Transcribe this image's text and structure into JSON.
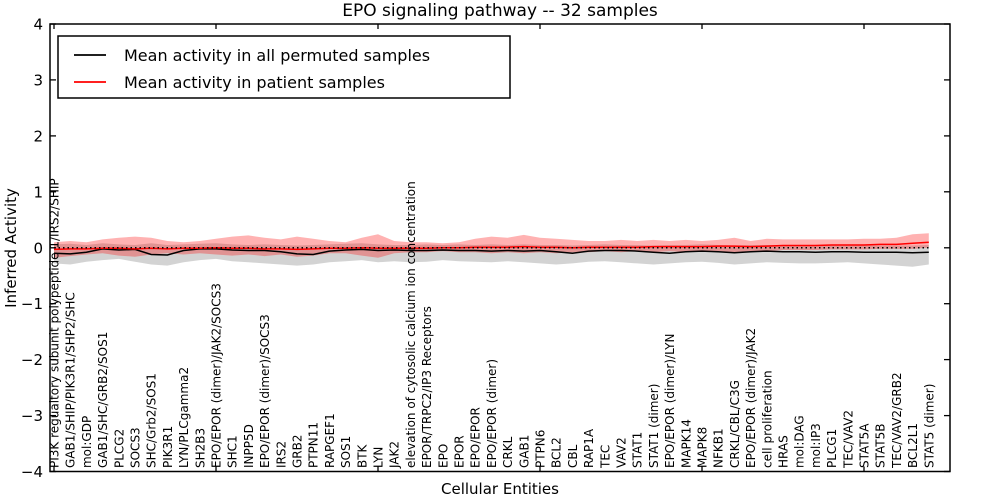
{
  "chart_data": {
    "type": "line",
    "title": "EPO signaling pathway -- 32 samples",
    "xlabel": "Cellular Entities",
    "ylabel": "Inferred Activity",
    "ylim": [
      -4,
      4
    ],
    "yticks": [
      -4,
      -3,
      -2,
      -1,
      0,
      1,
      2,
      3,
      4
    ],
    "xtick_interval": 10,
    "grid": false,
    "legend_position": "upper left",
    "zero_line": {
      "value": 0,
      "style": "dotted",
      "color": "#000000"
    },
    "legend": {
      "entries": [
        {
          "label": "Mean activity in all permuted samples",
          "color": "#000000"
        },
        {
          "label": "Mean activity in patient samples",
          "color": "#ff0000"
        }
      ]
    },
    "categories": [
      "PI3K regualtory subunit polypeptide 1/IRS2/SHIP",
      "GAB1/SHIP/PIK3R1/SHP2/SHC",
      "mol:GDP",
      "GAB1/SHC/GRB2/SOS1",
      "PLCG2",
      "SOCS3",
      "SHC/Grb2/SOS1",
      "PIK3R1",
      "LYN/PLCgamma2",
      "SH2B3",
      "EPO/EPOR (dimer)/JAK2/SOCS3",
      "SHC1",
      "INPP5D",
      "EPO/EPOR (dimer)/SOCS3",
      "IRS2",
      "GRB2",
      "PTPN11",
      "RAPGEF1",
      "SOS1",
      "BTK",
      "LYN",
      "JAK2",
      "elevation of cytosolic calcium ion concentration",
      "EPOR/TRPC2/IP3 Receptors",
      "EPO",
      "EPOR",
      "EPO/EPOR",
      "EPO/EPOR (dimer)",
      "CRKL",
      "GAB1",
      "PTPN6",
      "BCL2",
      "CBL",
      "RAP1A",
      "TEC",
      "VAV2",
      "STAT1",
      "STAT1 (dimer)",
      "EPO/EPOR (dimer)/LYN",
      "MAPK14",
      "MAPK8",
      "NFKB1",
      "CRKL/CBL/C3G",
      "EPO/EPOR (dimer)/JAK2",
      "cell proliferation",
      "HRAS",
      "mol:DAG",
      "mol:IP3",
      "PLCG1",
      "TEC/VAV2",
      "STAT5A",
      "STAT5B",
      "TEC/VAV2/GRB2",
      "BCL2L1",
      "STAT5 (dimer)"
    ],
    "series": [
      {
        "name": "Mean activity in all permuted samples",
        "color": "#000000",
        "style": "solid",
        "values": [
          -0.1,
          -0.11,
          -0.08,
          -0.02,
          -0.04,
          -0.03,
          -0.12,
          -0.13,
          -0.05,
          -0.02,
          -0.02,
          -0.04,
          -0.05,
          -0.05,
          -0.07,
          -0.11,
          -0.12,
          -0.06,
          -0.04,
          -0.03,
          -0.05,
          -0.04,
          -0.05,
          -0.05,
          -0.04,
          -0.05,
          -0.05,
          -0.06,
          -0.05,
          -0.06,
          -0.05,
          -0.07,
          -0.1,
          -0.06,
          -0.05,
          -0.05,
          -0.06,
          -0.08,
          -0.1,
          -0.07,
          -0.06,
          -0.07,
          -0.09,
          -0.07,
          -0.06,
          -0.07,
          -0.07,
          -0.08,
          -0.07,
          -0.07,
          -0.08,
          -0.08,
          -0.08,
          -0.09,
          -0.08
        ],
        "band": {
          "color": "#808080",
          "alpha": 0.35,
          "lo": [
            -0.28,
            -0.3,
            -0.25,
            -0.22,
            -0.2,
            -0.25,
            -0.3,
            -0.32,
            -0.26,
            -0.22,
            -0.2,
            -0.24,
            -0.26,
            -0.28,
            -0.3,
            -0.32,
            -0.3,
            -0.26,
            -0.24,
            -0.22,
            -0.26,
            -0.24,
            -0.26,
            -0.25,
            -0.22,
            -0.24,
            -0.25,
            -0.26,
            -0.24,
            -0.26,
            -0.28,
            -0.3,
            -0.28,
            -0.25,
            -0.24,
            -0.26,
            -0.28,
            -0.3,
            -0.28,
            -0.26,
            -0.25,
            -0.27,
            -0.3,
            -0.28,
            -0.26,
            -0.27,
            -0.28,
            -0.28,
            -0.27,
            -0.26,
            -0.28,
            -0.3,
            -0.32,
            -0.34,
            -0.3
          ],
          "hi": [
            0.06,
            0.07,
            0.05,
            0.08,
            0.06,
            0.05,
            0.08,
            0.05,
            0.06,
            0.07,
            0.08,
            0.06,
            0.05,
            0.06,
            0.05,
            0.04,
            0.05,
            0.06,
            0.07,
            0.08,
            0.06,
            0.05,
            0.05,
            0.06,
            0.05,
            0.06,
            0.05,
            0.06,
            0.05,
            0.06,
            0.05,
            0.05,
            0.04,
            0.05,
            0.06,
            0.05,
            0.05,
            0.04,
            0.05,
            0.05,
            0.06,
            0.05,
            0.04,
            0.05,
            0.05,
            0.05,
            0.04,
            0.05,
            0.05,
            0.05,
            0.04,
            0.04,
            0.04,
            0.04,
            0.05
          ]
        }
      },
      {
        "name": "Mean activity in patient samples",
        "color": "#ff0000",
        "style": "solid",
        "values": [
          -0.03,
          -0.02,
          -0.02,
          -0.01,
          -0.01,
          -0.02,
          -0.01,
          -0.02,
          -0.01,
          -0.01,
          0.0,
          -0.01,
          -0.01,
          -0.02,
          -0.02,
          -0.03,
          -0.02,
          -0.01,
          -0.01,
          0.0,
          -0.01,
          -0.01,
          -0.01,
          -0.01,
          0.0,
          0.0,
          0.01,
          0.01,
          0.01,
          0.02,
          0.01,
          0.01,
          0.0,
          0.01,
          0.01,
          0.01,
          0.01,
          0.02,
          0.02,
          0.02,
          0.02,
          0.03,
          0.03,
          0.02,
          0.03,
          0.04,
          0.04,
          0.04,
          0.05,
          0.05,
          0.05,
          0.06,
          0.06,
          0.08,
          0.1
        ],
        "band": {
          "color": "#ff0000",
          "alpha": 0.3,
          "lo": [
            -0.18,
            -0.15,
            -0.12,
            -0.1,
            -0.14,
            -0.16,
            -0.12,
            -0.1,
            -0.12,
            -0.1,
            -0.12,
            -0.14,
            -0.12,
            -0.15,
            -0.12,
            -0.16,
            -0.14,
            -0.1,
            -0.1,
            -0.14,
            -0.18,
            -0.1,
            -0.08,
            -0.08,
            -0.06,
            -0.08,
            -0.08,
            -0.1,
            -0.08,
            -0.1,
            -0.08,
            -0.1,
            -0.08,
            -0.08,
            -0.06,
            -0.08,
            -0.06,
            -0.08,
            -0.06,
            -0.08,
            -0.06,
            -0.06,
            -0.08,
            -0.06,
            -0.06,
            -0.04,
            -0.04,
            -0.04,
            -0.03,
            -0.03,
            -0.03,
            -0.02,
            -0.02,
            -0.02,
            0.0
          ],
          "hi": [
            0.1,
            0.12,
            0.1,
            0.15,
            0.18,
            0.2,
            0.18,
            0.12,
            0.1,
            0.12,
            0.16,
            0.2,
            0.22,
            0.18,
            0.15,
            0.2,
            0.16,
            0.12,
            0.1,
            0.18,
            0.24,
            0.12,
            0.1,
            0.1,
            0.08,
            0.1,
            0.16,
            0.2,
            0.18,
            0.23,
            0.18,
            0.16,
            0.14,
            0.12,
            0.12,
            0.14,
            0.12,
            0.14,
            0.12,
            0.14,
            0.12,
            0.14,
            0.18,
            0.12,
            0.16,
            0.15,
            0.15,
            0.15,
            0.15,
            0.15,
            0.16,
            0.16,
            0.18,
            0.24,
            0.26
          ]
        }
      }
    ]
  }
}
